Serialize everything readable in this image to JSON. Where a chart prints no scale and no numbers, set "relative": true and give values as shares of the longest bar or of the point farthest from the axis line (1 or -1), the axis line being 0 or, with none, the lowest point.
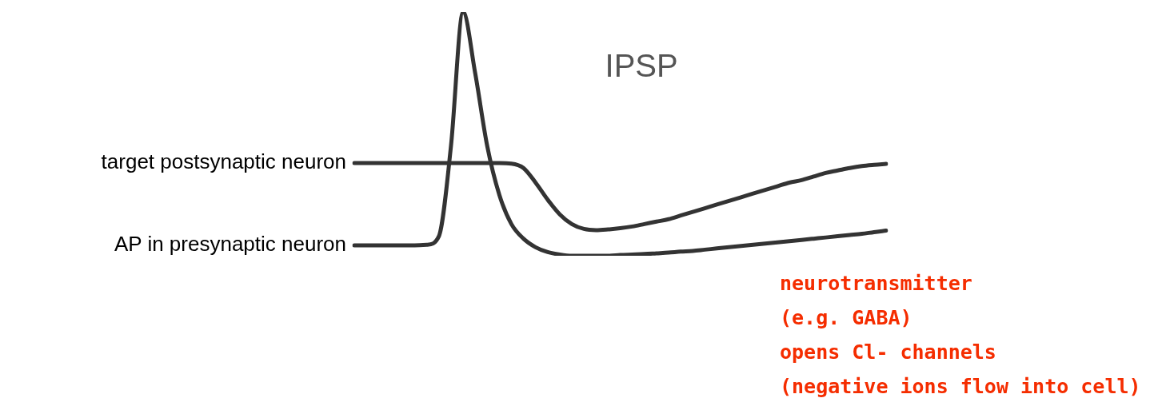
{
  "chart_data": {
    "type": "line",
    "title": "IPSP",
    "relative": true,
    "categories": [
      null,
      null,
      null,
      null,
      null,
      null,
      null,
      null,
      null,
      null,
      null,
      null,
      null,
      null,
      null,
      null,
      null,
      null,
      null,
      null,
      null,
      null,
      null,
      null,
      null,
      null,
      null,
      null,
      null,
      null,
      null,
      null,
      null,
      null,
      null,
      null,
      null,
      null,
      null,
      null,
      null,
      null,
      null,
      null,
      null
    ],
    "series": [
      {
        "name": "target postsynaptic neuron",
        "color": "#333333",
        "values": [
          0.38,
          0.38,
          0.38,
          0.38,
          0.38,
          0.38,
          0.38,
          0.38,
          0.38,
          0.38,
          0.38,
          0.38,
          0.38,
          0.378,
          0.36,
          0.3,
          0.23,
          0.17,
          0.13,
          0.11,
          0.105,
          0.108,
          0.113,
          0.12,
          0.13,
          0.14,
          0.15,
          0.165,
          0.18,
          0.195,
          0.21,
          0.225,
          0.24,
          0.255,
          0.27,
          0.285,
          0.3,
          0.31,
          0.325,
          0.34,
          0.35,
          0.36,
          0.368,
          0.373,
          0.377
        ]
      },
      {
        "name": "AP in presynaptic neuron",
        "color": "#333333",
        "values": [
          0.043,
          0.043,
          0.043,
          0.043,
          0.043,
          0.043,
          0.045,
          0.08,
          0.45,
          1,
          0.75,
          0.45,
          0.25,
          0.13,
          0.07,
          0.035,
          0.015,
          0.005,
          0,
          0,
          0,
          0,
          0.003,
          0.005,
          0.007,
          0.01,
          0.013,
          0.017,
          0.02,
          0.025,
          0.03,
          0.035,
          0.04,
          0.045,
          0.05,
          0.055,
          0.06,
          0.065,
          0.07,
          0.075,
          0.08,
          0.085,
          0.09,
          0.097,
          0.103
        ]
      }
    ],
    "annotations": [
      "neurotransmitter\n(e.g. GABA)\nopens Cl- channels\n(negative ions flow into cell)"
    ]
  }
}
